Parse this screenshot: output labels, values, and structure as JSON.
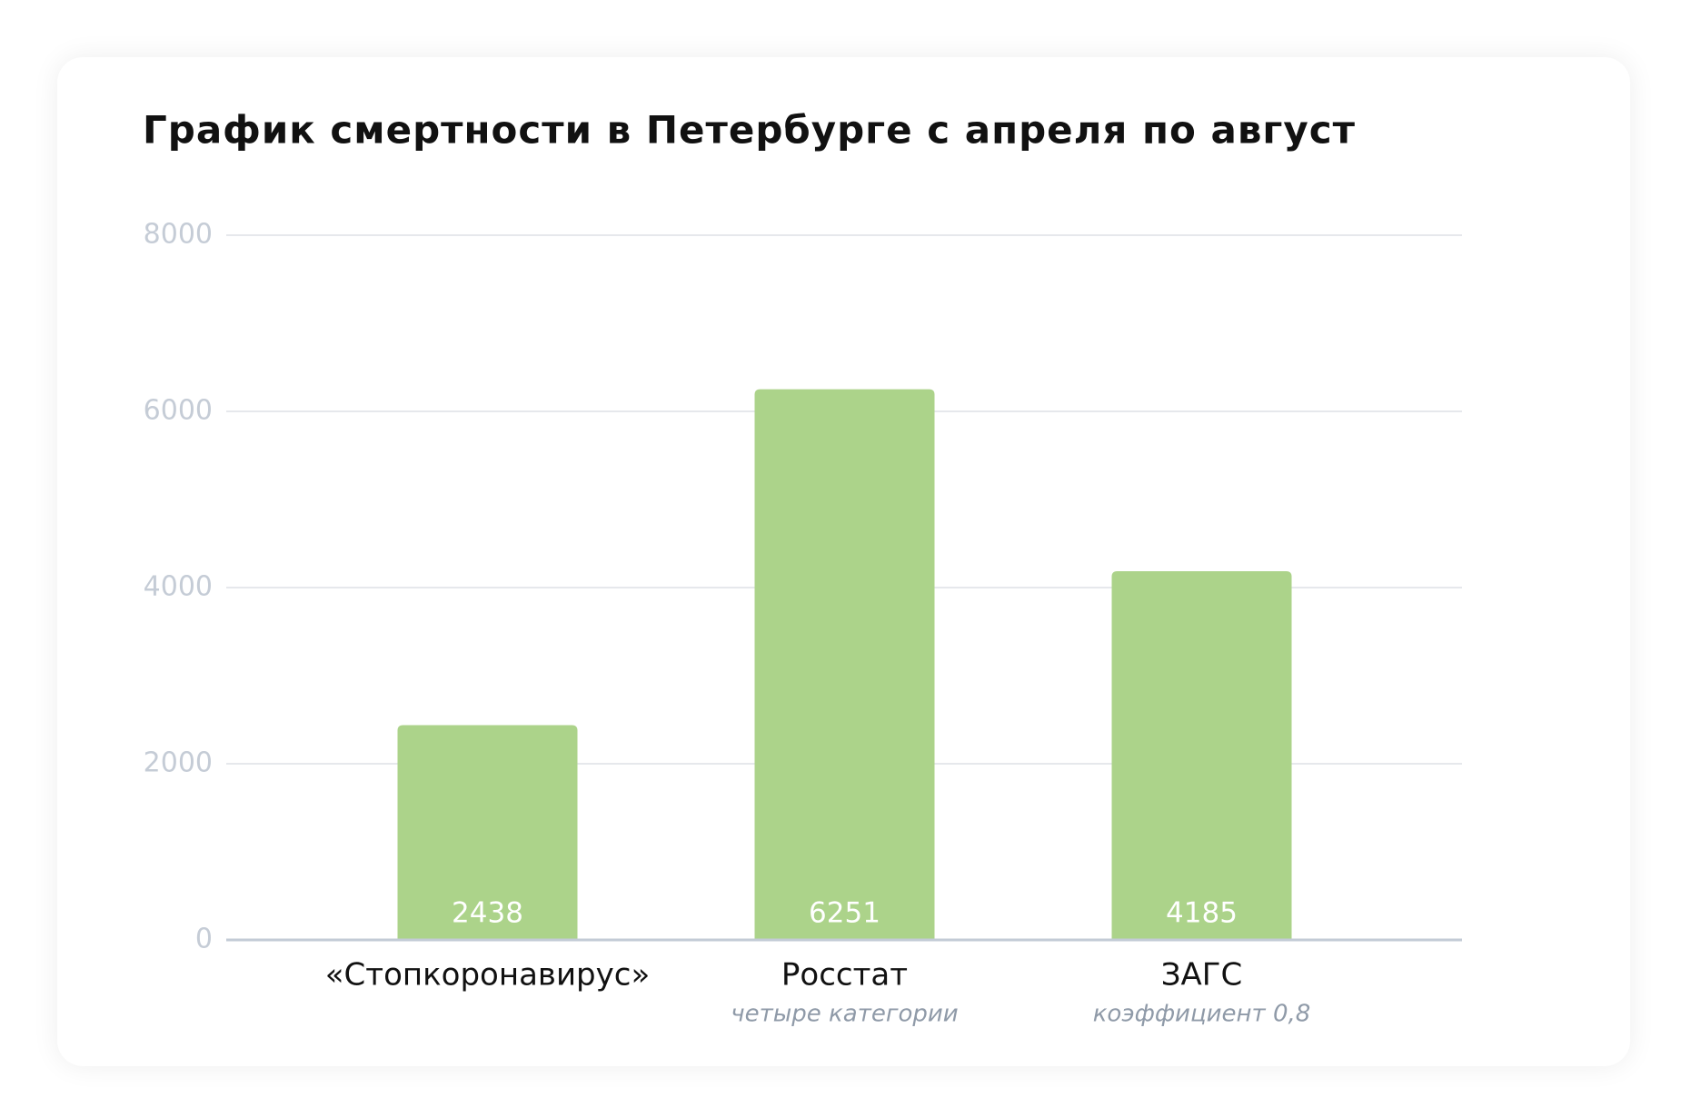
{
  "chart_data": {
    "type": "bar",
    "title": "График смертности в Петербурге с апреля по август",
    "categories": [
      "«Стопкоронавирус»",
      "Росстат",
      "ЗАГС"
    ],
    "category_notes": [
      null,
      "четыре категории",
      "коэффициент 0,8"
    ],
    "values": [
      2438,
      6251,
      4185
    ],
    "color": "#acd38a",
    "ylim": [
      0,
      8000
    ],
    "yticks": [
      0,
      2000,
      4000,
      6000,
      8000
    ],
    "grid": true
  }
}
